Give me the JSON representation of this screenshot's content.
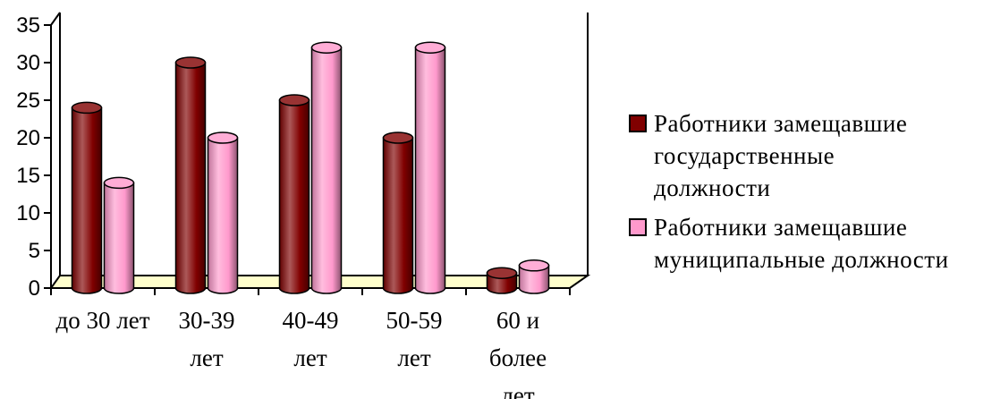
{
  "chart_data": {
    "type": "bar",
    "title": "",
    "xlabel": "",
    "ylabel": "",
    "ylim": [
      0,
      35
    ],
    "yticks": [
      0,
      5,
      10,
      15,
      20,
      25,
      30,
      35
    ],
    "categories": [
      [
        "до 30 лет"
      ],
      [
        "30-39",
        "лет"
      ],
      [
        "40-49",
        "лет"
      ],
      [
        "50-59",
        "лет"
      ],
      [
        "60 и",
        "более",
        "лет"
      ]
    ],
    "series": [
      {
        "name": "Работники замещавшие государственные должности",
        "color": "#800000",
        "values": [
          24,
          30,
          25,
          20,
          2
        ]
      },
      {
        "name": "Работники замещавшие муниципальные должности",
        "color": "#ff99cc",
        "values": [
          14,
          20,
          32,
          32,
          3
        ]
      }
    ],
    "legend_position": "right",
    "grid": false,
    "floor_color": "#ffffcc",
    "style": "3d-cylinder"
  },
  "legend": {
    "items": [
      {
        "lines": [
          "Работники замещавшие",
          "государственные",
          "должности"
        ],
        "color": "#800000"
      },
      {
        "lines": [
          "Работники замещавшие",
          "муниципальные должности"
        ],
        "color": "#ff99cc"
      }
    ]
  }
}
